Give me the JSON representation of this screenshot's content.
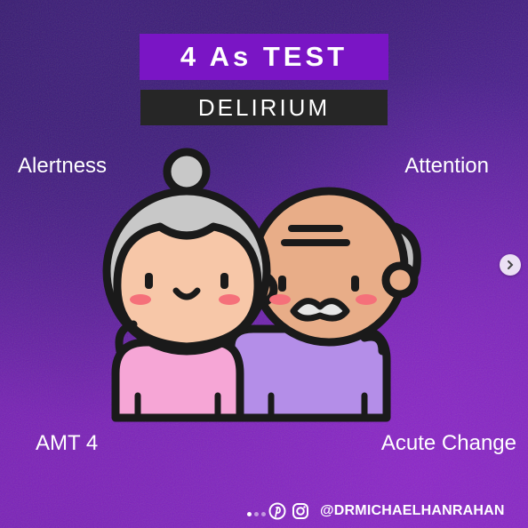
{
  "title": "4 As TEST",
  "subtitle": "DELIRIUM",
  "labels": {
    "top_left": "Alertness",
    "top_right": "Attention",
    "bottom_left": "AMT 4",
    "bottom_right": "Acute Change"
  },
  "footer": {
    "handle": "@DRMICHAELHANRAHAN",
    "icons": [
      "pinterest-icon",
      "instagram-icon"
    ]
  },
  "carousel": {
    "next_icon": "chevron-right-icon",
    "dots": 3,
    "active_dot": 1
  },
  "colors": {
    "title_bg": "#7a15c5",
    "subtitle_bg": "#262626",
    "background": "#5a1fa0"
  }
}
